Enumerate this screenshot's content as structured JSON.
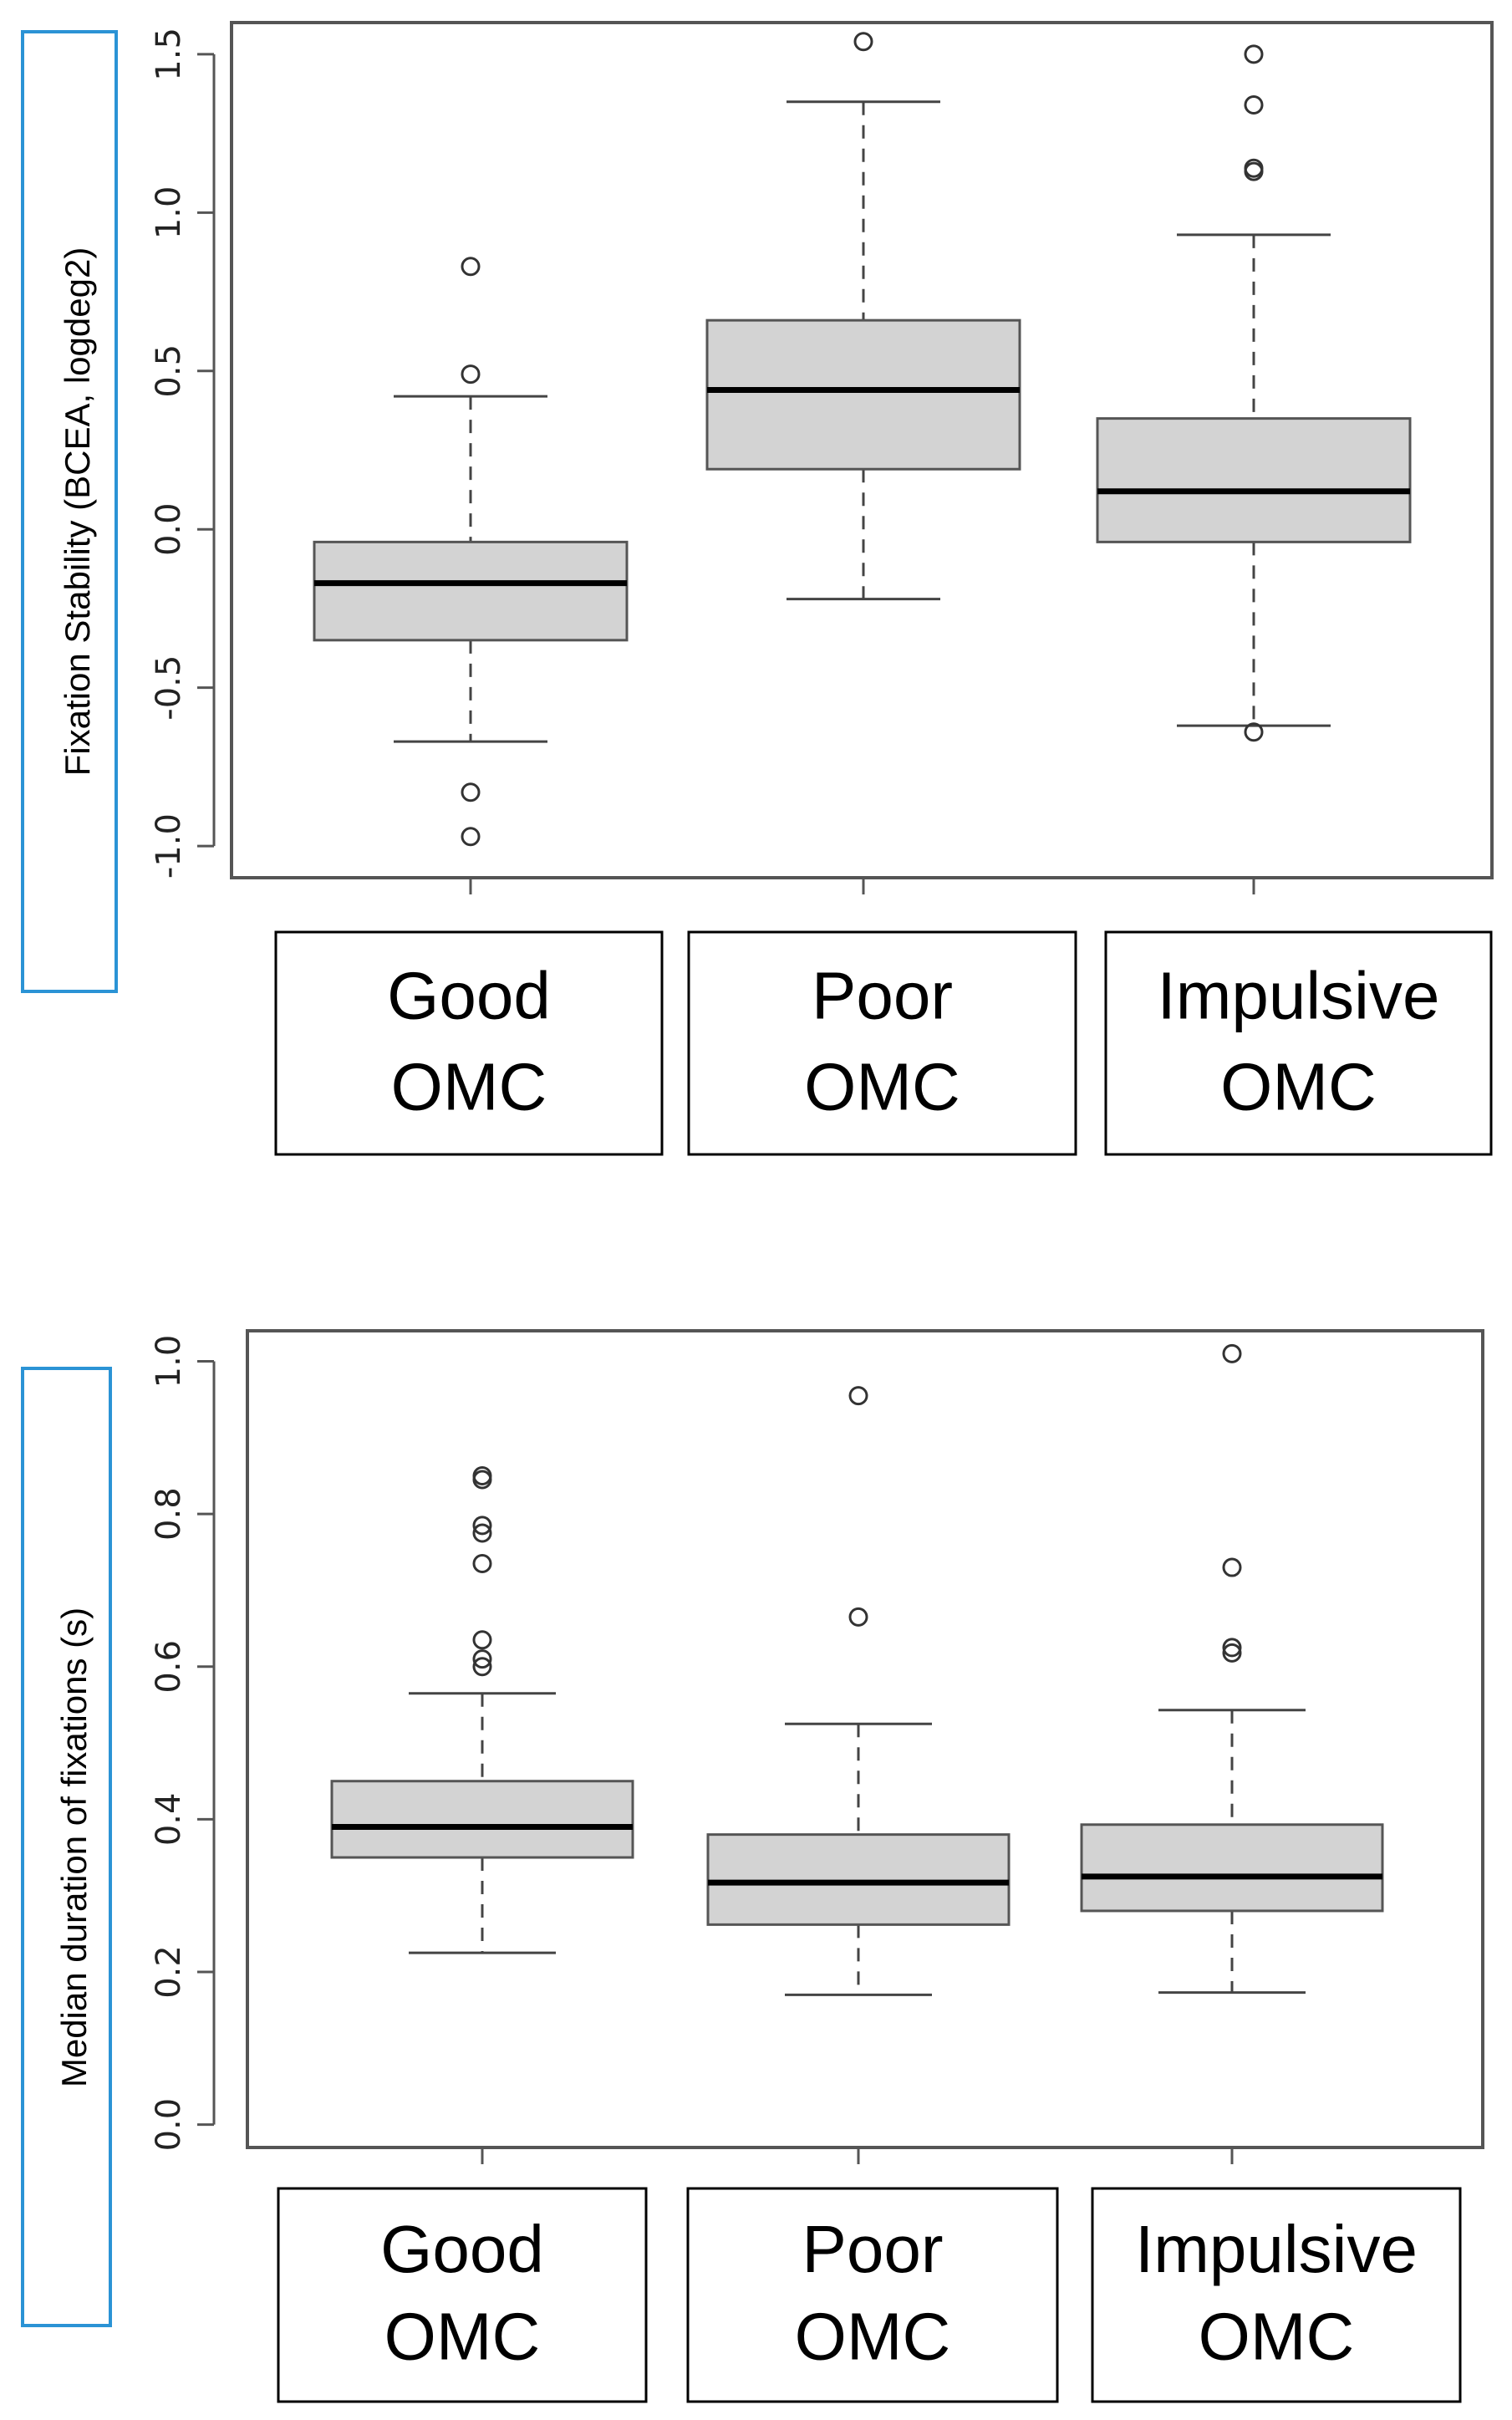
{
  "chart_data": [
    {
      "type": "box",
      "title": "",
      "ylabel": "Fixation Stability (BCEA, logdeg2)",
      "ylim": [
        -1.1,
        1.6
      ],
      "yticks": [
        -1.0,
        -0.5,
        0.0,
        0.5,
        1.0,
        1.5
      ],
      "ytick_labels": [
        "-1.0",
        "-0.5",
        "0.0",
        "0.5",
        "1.0",
        "1.5"
      ],
      "categories": [
        {
          "line1": "Good",
          "line2": "OMC"
        },
        {
          "line1": "Poor",
          "line2": "OMC"
        },
        {
          "line1": "Impulsive",
          "line2": "OMC"
        }
      ],
      "boxes": [
        {
          "name": "Good OMC",
          "whisker_low": -0.67,
          "q1": -0.35,
          "median": -0.17,
          "q3": -0.04,
          "whisker_high": 0.42,
          "outliers": [
            0.83,
            0.49,
            -0.83,
            -0.97
          ]
        },
        {
          "name": "Poor OMC",
          "whisker_low": -0.22,
          "q1": 0.19,
          "median": 0.44,
          "q3": 0.66,
          "whisker_high": 1.35,
          "outliers": [
            1.54
          ]
        },
        {
          "name": "Impulsive OMC",
          "whisker_low": -0.62,
          "q1": -0.04,
          "median": 0.12,
          "q3": 0.35,
          "whisker_high": 0.93,
          "outliers": [
            1.5,
            1.34,
            1.14,
            1.13,
            -0.64
          ]
        }
      ]
    },
    {
      "type": "box",
      "title": "",
      "ylabel": "Median duration of fixations (s)",
      "ylim": [
        -0.03,
        1.04
      ],
      "yticks": [
        0.0,
        0.2,
        0.4,
        0.6,
        0.8,
        1.0
      ],
      "ytick_labels": [
        "0.0",
        "0.2",
        "0.4",
        "0.6",
        "0.8",
        "1.0"
      ],
      "categories": [
        {
          "line1": "Good",
          "line2": "OMC"
        },
        {
          "line1": "Poor",
          "line2": "OMC"
        },
        {
          "line1": "Impulsive",
          "line2": "OMC"
        }
      ],
      "boxes": [
        {
          "name": "Good OMC",
          "whisker_low": 0.225,
          "q1": 0.35,
          "median": 0.39,
          "q3": 0.45,
          "whisker_high": 0.565,
          "outliers": [
            0.85,
            0.845,
            0.785,
            0.775,
            0.735,
            0.635,
            0.61,
            0.6
          ]
        },
        {
          "name": "Poor OMC",
          "whisker_low": 0.17,
          "q1": 0.262,
          "median": 0.317,
          "q3": 0.38,
          "whisker_high": 0.525,
          "outliers": [
            0.955,
            0.665
          ]
        },
        {
          "name": "Impulsive OMC",
          "whisker_low": 0.173,
          "q1": 0.28,
          "median": 0.325,
          "q3": 0.393,
          "whisker_high": 0.543,
          "outliers": [
            1.01,
            0.73,
            0.625,
            0.618
          ]
        }
      ]
    }
  ]
}
